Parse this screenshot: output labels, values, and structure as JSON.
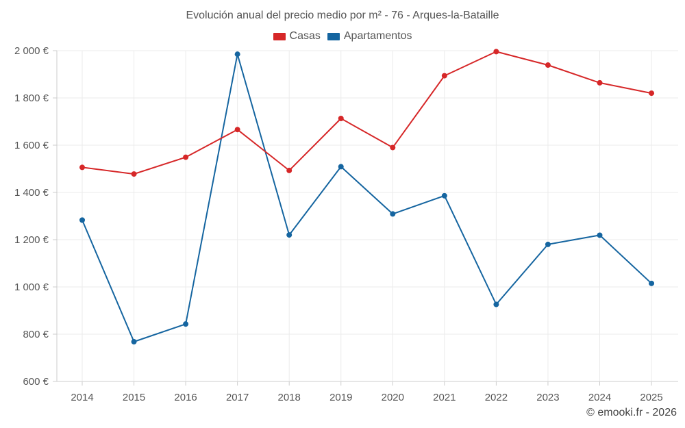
{
  "chart_data": {
    "type": "line",
    "title": "Evolución anual del precio medio por m² - 76 - Arques-la-Bataille",
    "xlabel": "",
    "ylabel": "",
    "categories": [
      "2014",
      "2015",
      "2016",
      "2017",
      "2018",
      "2019",
      "2020",
      "2021",
      "2022",
      "2023",
      "2024",
      "2025"
    ],
    "ylim": [
      600,
      2000
    ],
    "yticks": [
      600,
      800,
      1000,
      1200,
      1400,
      1600,
      1800,
      2000
    ],
    "ytick_labels": [
      "600 €",
      "800 €",
      "1 000 €",
      "1 200 €",
      "1 400 €",
      "1 600 €",
      "1 800 €",
      "2 000 €"
    ],
    "grid": true,
    "legend_position": "top-center",
    "series": [
      {
        "name": "Casas",
        "color": "#d62728",
        "values": [
          1506,
          1478,
          1549,
          1666,
          1493,
          1713,
          1590,
          1894,
          1996,
          1939,
          1864,
          1820
        ]
      },
      {
        "name": "Apartamentos",
        "color": "#1565a0",
        "values": [
          1283,
          768,
          843,
          1985,
          1220,
          1509,
          1309,
          1386,
          926,
          1180,
          1219,
          1015
        ]
      }
    ]
  },
  "credit": "© emooki.fr - 2026"
}
